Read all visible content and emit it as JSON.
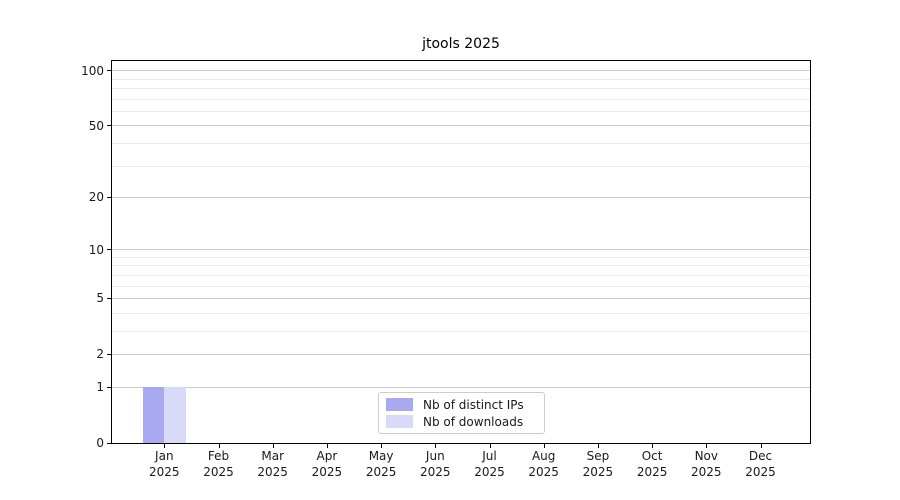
{
  "title": "jtools 2025",
  "chart_data": {
    "type": "bar",
    "title": "jtools 2025",
    "categories": [
      "Jan 2025",
      "Feb 2025",
      "Mar 2025",
      "Apr 2025",
      "May 2025",
      "Jun 2025",
      "Jul 2025",
      "Aug 2025",
      "Sep 2025",
      "Oct 2025",
      "Nov 2025",
      "Dec 2025"
    ],
    "series": [
      {
        "name": "Nb of distinct IPs",
        "color": "#a9a9f2",
        "values": [
          1,
          0,
          0,
          0,
          0,
          0,
          0,
          0,
          0,
          0,
          0,
          0
        ]
      },
      {
        "name": "Nb of downloads",
        "color": "#d9d9f8",
        "values": [
          1,
          0,
          0,
          0,
          0,
          0,
          0,
          0,
          0,
          0,
          0,
          0
        ]
      }
    ],
    "xlabel": "",
    "ylabel": "",
    "y_axis": {
      "scale": "log1p",
      "tick_values": [
        0,
        1,
        2,
        5,
        10,
        20,
        50,
        100
      ],
      "minor_gridline_values": [
        3,
        4,
        6,
        7,
        8,
        9,
        30,
        40,
        60,
        70,
        80,
        90
      ],
      "min": 0,
      "max": 113
    },
    "grid": true,
    "legend": {
      "position": "lower center",
      "entries": [
        "Nb of distinct IPs",
        "Nb of downloads"
      ]
    }
  },
  "colors": {
    "bar_distinct_ips": "#a9a9f2",
    "bar_downloads": "#d9d9f8",
    "major_gridline": "#cccccc",
    "minor_gridline": "#e9e9e9",
    "axis_spine": "#000000",
    "text": "#1a1a1a"
  }
}
